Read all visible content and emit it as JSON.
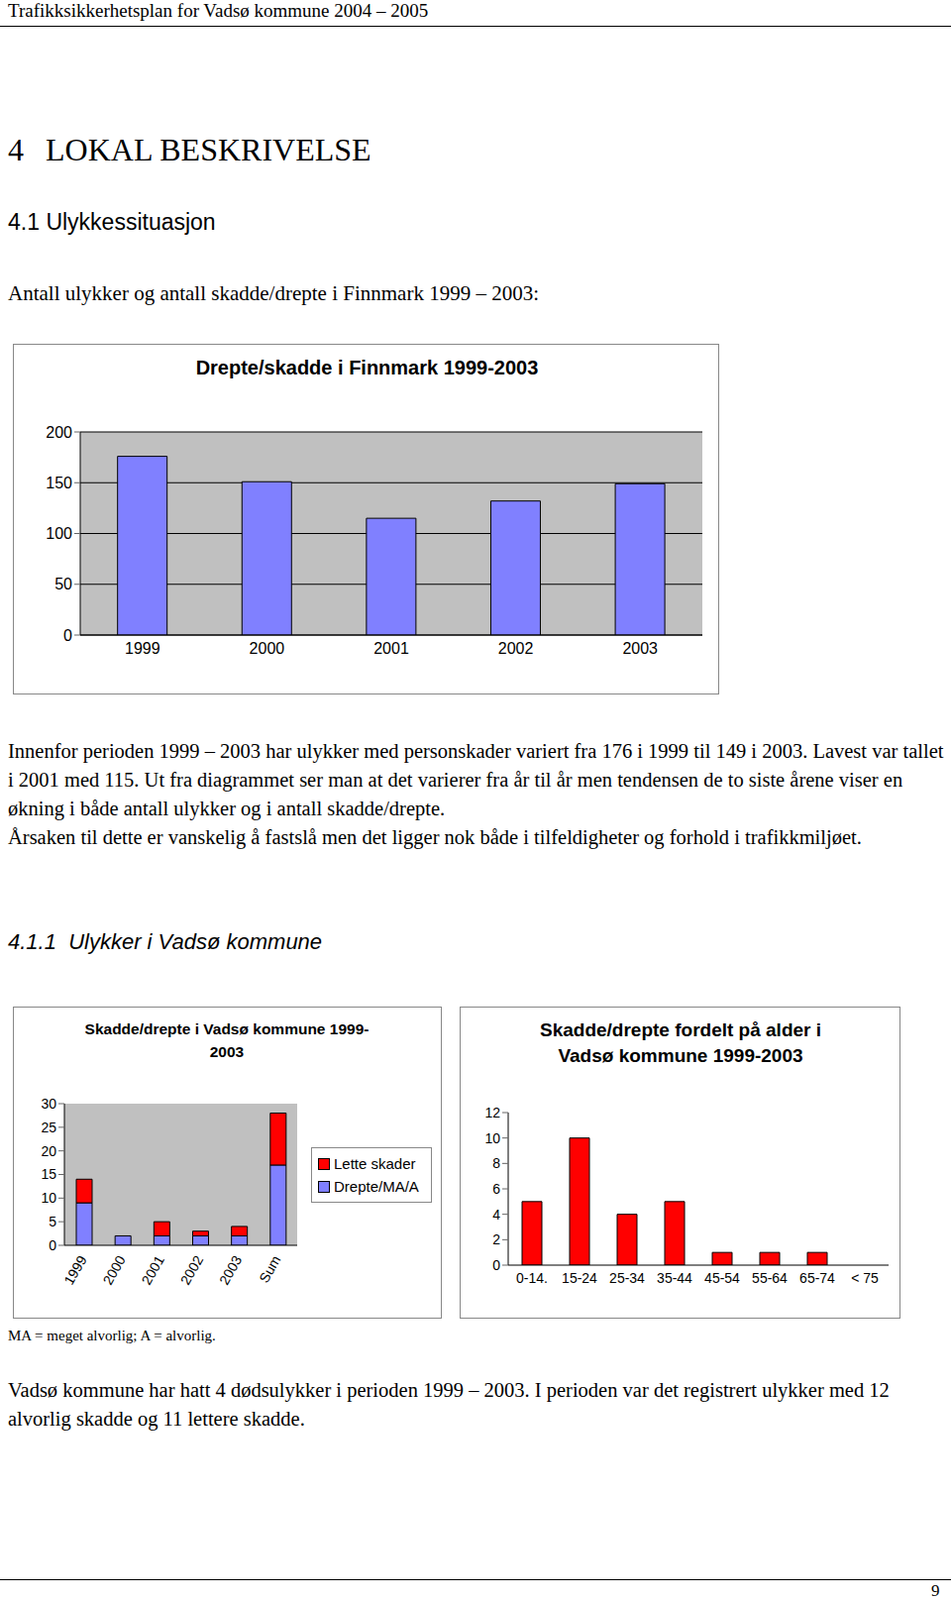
{
  "header": {
    "text": "Trafikksikkerhetsplan for Vadsø kommune 2004 – 2005"
  },
  "heading": {
    "number": "4",
    "title": "LOKAL BESKRIVELSE"
  },
  "section": {
    "number": "4.1",
    "title": "Ulykkessituasjon"
  },
  "intro": "Antall ulykker og antall skadde/drepte i Finnmark 1999 – 2003:",
  "paragraphs": [
    "Innenfor perioden 1999 – 2003 har ulykker med personskader variert fra 176 i 1999 til 149 i 2003. Lavest var tallet i 2001 med 115. Ut fra diagrammet ser man at det varierer fra år til år men tendensen de to siste årene viser en økning i både antall ulykker og i antall skadde/drepte.",
    "Årsaken til dette er vanskelig å fastslå men det ligger nok både i tilfeldigheter og forhold i trafikkmiljøet."
  ],
  "subsection": {
    "number": "4.1.1",
    "title": "Ulykker i Vadsø kommune"
  },
  "note": "MA = meget alvorlig; A = alvorlig.",
  "closing": "Vadsø kommune har hatt 4 dødsulykker i perioden 1999 – 2003. I perioden var det registrert ulykker med 12 alvorlig skadde og 11 lettere skadde.",
  "page_number": "9",
  "chart_data": [
    {
      "type": "bar",
      "title": "Drepte/skadde i Finnmark 1999-2003",
      "categories": [
        "1999",
        "2000",
        "2001",
        "2002",
        "2003"
      ],
      "values": [
        176,
        151,
        115,
        132,
        149
      ],
      "color": "#8080ff",
      "ylim": [
        0,
        200
      ],
      "yticks": [
        0,
        50,
        100,
        150,
        200
      ],
      "grid": true
    },
    {
      "type": "bar",
      "title": "Skadde/drepte i Vadsø kommune 1999-2003",
      "categories": [
        "1999",
        "2000",
        "2001",
        "2002",
        "2003",
        "Sum"
      ],
      "series": [
        {
          "name": "Drepte/MA/A",
          "color": "#8080ff",
          "values": [
            9,
            2,
            2,
            2,
            2,
            17
          ]
        },
        {
          "name": "Lette skader",
          "color": "#ff0000",
          "values": [
            5,
            0,
            3,
            1,
            2,
            11
          ]
        }
      ],
      "stacked": true,
      "legend": "right",
      "ylim": [
        0,
        30
      ],
      "yticks": [
        0,
        5,
        10,
        15,
        20,
        25,
        30
      ],
      "grid": false
    },
    {
      "type": "bar",
      "title": "Skadde/drepte fordelt på alder i Vadsø kommune 1999-2003",
      "categories": [
        "0-14.",
        "15-24",
        "25-34",
        "35-44",
        "45-54",
        "55-64",
        "65-74",
        "< 75"
      ],
      "values": [
        5,
        10,
        4,
        5,
        1,
        1,
        1,
        0
      ],
      "color": "#ff0000",
      "ylim": [
        0,
        12
      ],
      "yticks": [
        0,
        2,
        4,
        6,
        8,
        10,
        12
      ],
      "grid": false
    }
  ]
}
